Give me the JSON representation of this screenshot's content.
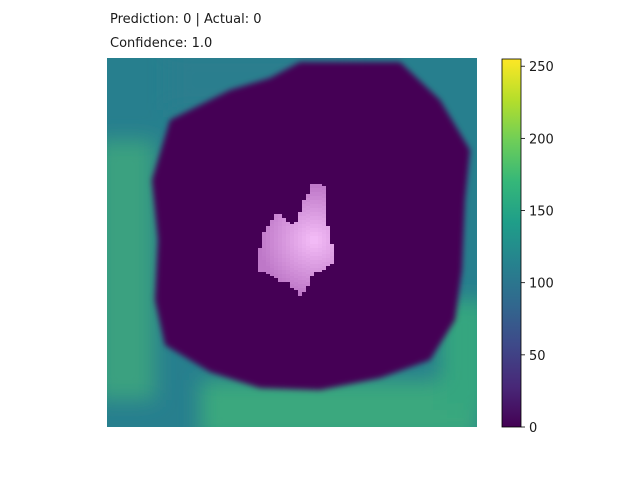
{
  "title": {
    "prediction_label": "Prediction: 0 | Actual: 0",
    "confidence_label": "Confidence: 1.0"
  },
  "chart_data": {
    "type": "heatmap",
    "colormap": "viridis",
    "overlay_colormap": "pink-magenta",
    "title": "Prediction: 0 | Actual: 0",
    "subtitle": "Confidence: 1.0",
    "colorbar": {
      "range": [
        0,
        255
      ],
      "ticks": [
        0,
        50,
        100,
        150,
        200,
        250
      ],
      "tick_labels": [
        "0",
        "50",
        "100",
        "150",
        "200",
        "250"
      ]
    },
    "axes_visible": false,
    "prediction": 0,
    "actual": 0,
    "confidence": 1.0
  }
}
